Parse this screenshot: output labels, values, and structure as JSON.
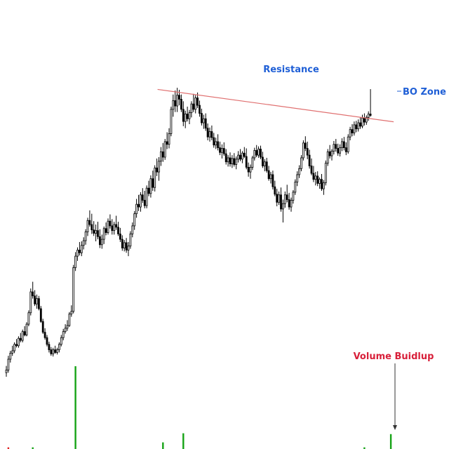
{
  "chart_data": {
    "type": "candlestick",
    "price_range": [
      0,
      100
    ],
    "annotations": {
      "resistance": "Resistance",
      "breakout": "BO Zone",
      "volume": "Volume Buidlup"
    },
    "colors": {
      "candle": "#000000",
      "resistance_line": "#e07070",
      "label_blue": "#1f5fd6",
      "label_red": "#d8203a",
      "volume_bar": "#16a316",
      "volume_bar_small": "#e02020",
      "arrow": "#333333"
    },
    "resistance_line": {
      "start": [
        84,
        89.7
      ],
      "end": [
        189,
        80.7
      ]
    },
    "volume": {
      "max": 100,
      "bars": [
        {
          "index": 1,
          "value": 2,
          "color": "red"
        },
        {
          "index": 13,
          "value": 2,
          "color": "green"
        },
        {
          "index": 34,
          "value": 100,
          "color": "green"
        },
        {
          "index": 77,
          "value": 8,
          "color": "green"
        },
        {
          "index": 87,
          "value": 19,
          "color": "green"
        },
        {
          "index": 176,
          "value": 2,
          "color": "green"
        },
        {
          "index": 189,
          "value": 18,
          "color": "green"
        }
      ]
    },
    "candles": [
      [
        6.0,
        8.0,
        4.8,
        6.8
      ],
      [
        6.8,
        11.0,
        6.0,
        10.0
      ],
      [
        10.0,
        12.5,
        9.0,
        11.8
      ],
      [
        11.8,
        14.0,
        11.0,
        12.5
      ],
      [
        12.5,
        15.0,
        11.8,
        14.4
      ],
      [
        14.4,
        16.0,
        13.5,
        14.0
      ],
      [
        14.0,
        16.8,
        13.4,
        16.2
      ],
      [
        16.2,
        17.8,
        15.0,
        15.6
      ],
      [
        15.6,
        18.8,
        15.0,
        18.2
      ],
      [
        18.2,
        19.8,
        16.8,
        17.2
      ],
      [
        17.2,
        21.0,
        16.8,
        20.4
      ],
      [
        20.4,
        24.5,
        19.8,
        23.8
      ],
      [
        23.8,
        31.0,
        23.0,
        30.0
      ],
      [
        30.0,
        33.0,
        28.0,
        28.8
      ],
      [
        28.8,
        30.5,
        25.8,
        26.4
      ],
      [
        26.4,
        29.2,
        25.0,
        28.0
      ],
      [
        28.0,
        28.8,
        24.5,
        25.0
      ],
      [
        25.0,
        25.8,
        20.8,
        21.2
      ],
      [
        21.2,
        22.0,
        17.5,
        18.0
      ],
      [
        18.0,
        19.2,
        15.8,
        16.4
      ],
      [
        16.4,
        17.2,
        13.8,
        14.4
      ],
      [
        14.4,
        15.2,
        12.0,
        12.8
      ],
      [
        12.8,
        13.6,
        11.0,
        11.6
      ],
      [
        11.6,
        13.4,
        10.8,
        12.8
      ],
      [
        12.8,
        14.0,
        11.6,
        12.0
      ],
      [
        12.0,
        13.4,
        11.4,
        12.8
      ],
      [
        12.8,
        15.0,
        12.0,
        14.4
      ],
      [
        14.4,
        17.2,
        13.8,
        16.4
      ],
      [
        16.4,
        19.0,
        15.6,
        18.2
      ],
      [
        18.2,
        20.4,
        17.6,
        19.2
      ],
      [
        19.2,
        21.6,
        18.4,
        20.0
      ],
      [
        20.0,
        24.0,
        19.6,
        23.4
      ],
      [
        23.4,
        26.0,
        22.6,
        24.2
      ],
      [
        24.2,
        38.0,
        23.6,
        37.2
      ],
      [
        37.2,
        41.8,
        36.2,
        40.6
      ],
      [
        40.6,
        43.2,
        39.2,
        42.4
      ],
      [
        42.4,
        44.8,
        40.8,
        41.6
      ],
      [
        41.6,
        45.0,
        40.6,
        43.8
      ],
      [
        43.8,
        46.2,
        42.6,
        45.2
      ],
      [
        45.2,
        48.6,
        44.0,
        47.8
      ],
      [
        47.8,
        52.0,
        46.6,
        51.2
      ],
      [
        51.2,
        54.2,
        49.4,
        50.0
      ],
      [
        50.0,
        53.2,
        47.2,
        48.4
      ],
      [
        48.4,
        51.0,
        46.6,
        47.4
      ],
      [
        47.4,
        50.0,
        45.0,
        48.2
      ],
      [
        48.2,
        50.8,
        45.6,
        46.4
      ],
      [
        46.4,
        48.6,
        43.0,
        44.0
      ],
      [
        44.0,
        47.0,
        42.8,
        45.6
      ],
      [
        45.6,
        49.4,
        44.2,
        48.8
      ],
      [
        48.8,
        50.6,
        46.8,
        47.6
      ],
      [
        47.6,
        51.8,
        47.0,
        51.0
      ],
      [
        51.0,
        53.0,
        48.8,
        49.6
      ],
      [
        49.6,
        51.6,
        47.0,
        48.2
      ],
      [
        48.2,
        50.8,
        47.0,
        50.0
      ],
      [
        50.0,
        52.6,
        48.4,
        49.2
      ],
      [
        49.2,
        50.8,
        46.6,
        47.2
      ],
      [
        47.2,
        49.0,
        44.8,
        45.6
      ],
      [
        45.6,
        46.8,
        42.2,
        43.0
      ],
      [
        43.0,
        45.4,
        42.0,
        44.6
      ],
      [
        44.6,
        46.0,
        41.6,
        42.4
      ],
      [
        42.4,
        44.8,
        40.6,
        43.6
      ],
      [
        43.6,
        48.0,
        42.8,
        47.2
      ],
      [
        47.2,
        50.6,
        46.2,
        49.6
      ],
      [
        49.6,
        54.0,
        48.4,
        53.2
      ],
      [
        53.2,
        57.6,
        52.0,
        56.0
      ],
      [
        56.0,
        58.8,
        54.0,
        55.2
      ],
      [
        55.2,
        59.6,
        53.8,
        58.8
      ],
      [
        58.8,
        60.8,
        56.4,
        57.2
      ],
      [
        57.2,
        60.0,
        54.8,
        55.6
      ],
      [
        55.6,
        61.6,
        54.8,
        60.8
      ],
      [
        60.8,
        63.0,
        58.4,
        59.2
      ],
      [
        59.2,
        64.6,
        58.0,
        63.6
      ],
      [
        63.6,
        66.0,
        60.0,
        61.0
      ],
      [
        61.0,
        67.6,
        59.8,
        66.8
      ],
      [
        66.8,
        69.6,
        64.4,
        65.6
      ],
      [
        65.6,
        70.0,
        63.0,
        68.8
      ],
      [
        68.8,
        73.0,
        67.4,
        71.6
      ],
      [
        71.6,
        74.2,
        68.6,
        70.0
      ],
      [
        70.0,
        75.4,
        69.2,
        74.6
      ],
      [
        74.6,
        77.4,
        72.4,
        73.8
      ],
      [
        73.8,
        78.6,
        72.6,
        77.0
      ],
      [
        77.0,
        85.0,
        76.2,
        84.2
      ],
      [
        84.2,
        88.6,
        82.0,
        86.8
      ],
      [
        86.8,
        89.8,
        83.4,
        85.2
      ],
      [
        85.2,
        90.6,
        83.4,
        88.4
      ],
      [
        88.4,
        90.0,
        85.4,
        87.2
      ],
      [
        87.2,
        88.6,
        83.4,
        84.2
      ],
      [
        84.2,
        86.6,
        79.2,
        80.6
      ],
      [
        80.6,
        83.8,
        78.6,
        82.8
      ],
      [
        82.8,
        85.0,
        80.6,
        81.4
      ],
      [
        81.4,
        84.0,
        79.8,
        83.2
      ],
      [
        83.2,
        86.6,
        81.8,
        85.8
      ],
      [
        85.8,
        88.8,
        83.4,
        84.2
      ],
      [
        84.2,
        88.4,
        83.0,
        87.6
      ],
      [
        87.6,
        89.2,
        84.6,
        85.4
      ],
      [
        85.4,
        86.8,
        82.0,
        83.0
      ],
      [
        83.0,
        84.4,
        79.4,
        80.2
      ],
      [
        80.2,
        82.6,
        78.4,
        81.4
      ],
      [
        81.4,
        83.0,
        77.8,
        78.6
      ],
      [
        78.6,
        80.0,
        75.0,
        76.0
      ],
      [
        76.0,
        78.8,
        74.6,
        77.6
      ],
      [
        77.6,
        79.4,
        75.0,
        75.8
      ],
      [
        75.8,
        77.2,
        72.8,
        73.6
      ],
      [
        73.6,
        75.8,
        72.4,
        74.6
      ],
      [
        74.6,
        76.8,
        72.0,
        72.8
      ],
      [
        72.8,
        74.6,
        70.6,
        71.4
      ],
      [
        71.4,
        73.8,
        69.6,
        72.6
      ],
      [
        72.6,
        74.4,
        70.4,
        71.0
      ],
      [
        71.0,
        72.4,
        67.8,
        68.6
      ],
      [
        68.6,
        70.6,
        67.2,
        69.8
      ],
      [
        69.8,
        71.4,
        67.2,
        68.0
      ],
      [
        68.0,
        70.6,
        66.8,
        69.6
      ],
      [
        69.6,
        71.2,
        67.2,
        67.8
      ],
      [
        67.8,
        70.2,
        66.4,
        69.4
      ],
      [
        69.4,
        71.8,
        68.4,
        70.6
      ],
      [
        70.6,
        72.4,
        68.8,
        69.4
      ],
      [
        69.4,
        71.8,
        68.2,
        71.2
      ],
      [
        71.2,
        73.0,
        69.8,
        70.2
      ],
      [
        70.2,
        72.6,
        66.4,
        67.0
      ],
      [
        67.0,
        68.4,
        64.2,
        65.6
      ],
      [
        65.6,
        67.8,
        63.6,
        67.0
      ],
      [
        67.0,
        70.4,
        66.2,
        69.8
      ],
      [
        69.8,
        72.8,
        69.0,
        72.0
      ],
      [
        72.0,
        73.6,
        70.0,
        70.6
      ],
      [
        70.6,
        73.2,
        69.8,
        72.4
      ],
      [
        72.4,
        73.4,
        69.4,
        70.0
      ],
      [
        70.0,
        71.6,
        66.8,
        67.4
      ],
      [
        67.4,
        69.4,
        65.8,
        68.6
      ],
      [
        68.6,
        69.8,
        65.4,
        66.0
      ],
      [
        66.0,
        67.4,
        63.0,
        63.6
      ],
      [
        63.6,
        65.6,
        62.2,
        64.8
      ],
      [
        64.8,
        66.0,
        60.4,
        61.2
      ],
      [
        61.2,
        63.0,
        58.4,
        59.0
      ],
      [
        59.0,
        60.6,
        55.4,
        56.6
      ],
      [
        56.6,
        59.8,
        55.8,
        58.8
      ],
      [
        58.8,
        61.0,
        53.8,
        54.6
      ],
      [
        54.6,
        57.4,
        50.6,
        56.2
      ],
      [
        56.2,
        59.8,
        55.0,
        58.8
      ],
      [
        58.8,
        61.8,
        56.6,
        57.4
      ],
      [
        57.4,
        59.4,
        54.4,
        55.2
      ],
      [
        55.2,
        58.0,
        53.8,
        57.2
      ],
      [
        57.2,
        60.2,
        56.2,
        59.6
      ],
      [
        59.6,
        63.4,
        58.8,
        62.6
      ],
      [
        62.6,
        65.8,
        61.4,
        64.8
      ],
      [
        64.8,
        67.6,
        63.8,
        66.6
      ],
      [
        66.6,
        70.6,
        65.8,
        69.8
      ],
      [
        69.8,
        75.0,
        69.0,
        74.2
      ],
      [
        74.2,
        76.2,
        71.8,
        72.6
      ],
      [
        72.6,
        74.6,
        69.4,
        70.6
      ],
      [
        70.6,
        72.2,
        66.6,
        67.4
      ],
      [
        67.4,
        69.6,
        64.6,
        65.2
      ],
      [
        65.2,
        67.4,
        62.6,
        63.4
      ],
      [
        63.4,
        65.6,
        61.6,
        64.4
      ],
      [
        64.4,
        65.8,
        61.4,
        62.2
      ],
      [
        62.2,
        64.0,
        60.6,
        63.4
      ],
      [
        63.4,
        65.0,
        60.0,
        60.6
      ],
      [
        60.6,
        63.2,
        58.8,
        62.4
      ],
      [
        62.4,
        69.0,
        61.6,
        68.2
      ],
      [
        68.2,
        72.4,
        67.4,
        71.6
      ],
      [
        71.6,
        73.6,
        69.6,
        70.4
      ],
      [
        70.4,
        72.4,
        69.0,
        71.8
      ],
      [
        71.8,
        74.8,
        70.8,
        73.8
      ],
      [
        73.8,
        75.4,
        71.6,
        72.6
      ],
      [
        72.6,
        74.0,
        70.4,
        71.2
      ],
      [
        71.2,
        73.8,
        70.2,
        72.8
      ],
      [
        72.8,
        75.6,
        71.8,
        74.6
      ],
      [
        74.6,
        76.0,
        72.0,
        72.8
      ],
      [
        72.8,
        74.4,
        70.6,
        71.6
      ],
      [
        71.6,
        76.8,
        71.0,
        76.0
      ],
      [
        76.0,
        79.0,
        75.0,
        78.2
      ],
      [
        78.2,
        79.8,
        76.2,
        77.2
      ],
      [
        77.2,
        80.6,
        76.4,
        79.6
      ],
      [
        79.6,
        80.8,
        77.4,
        78.4
      ],
      [
        78.4,
        81.2,
        77.6,
        80.2
      ],
      [
        80.2,
        81.8,
        78.4,
        79.2
      ],
      [
        79.2,
        82.6,
        78.6,
        81.6
      ],
      [
        81.6,
        83.0,
        79.4,
        80.4
      ],
      [
        80.4,
        82.4,
        79.6,
        81.8
      ],
      [
        81.8,
        83.6,
        80.8,
        82.8
      ],
      [
        82.8,
        90.2,
        82.0,
        82.4
      ]
    ]
  }
}
